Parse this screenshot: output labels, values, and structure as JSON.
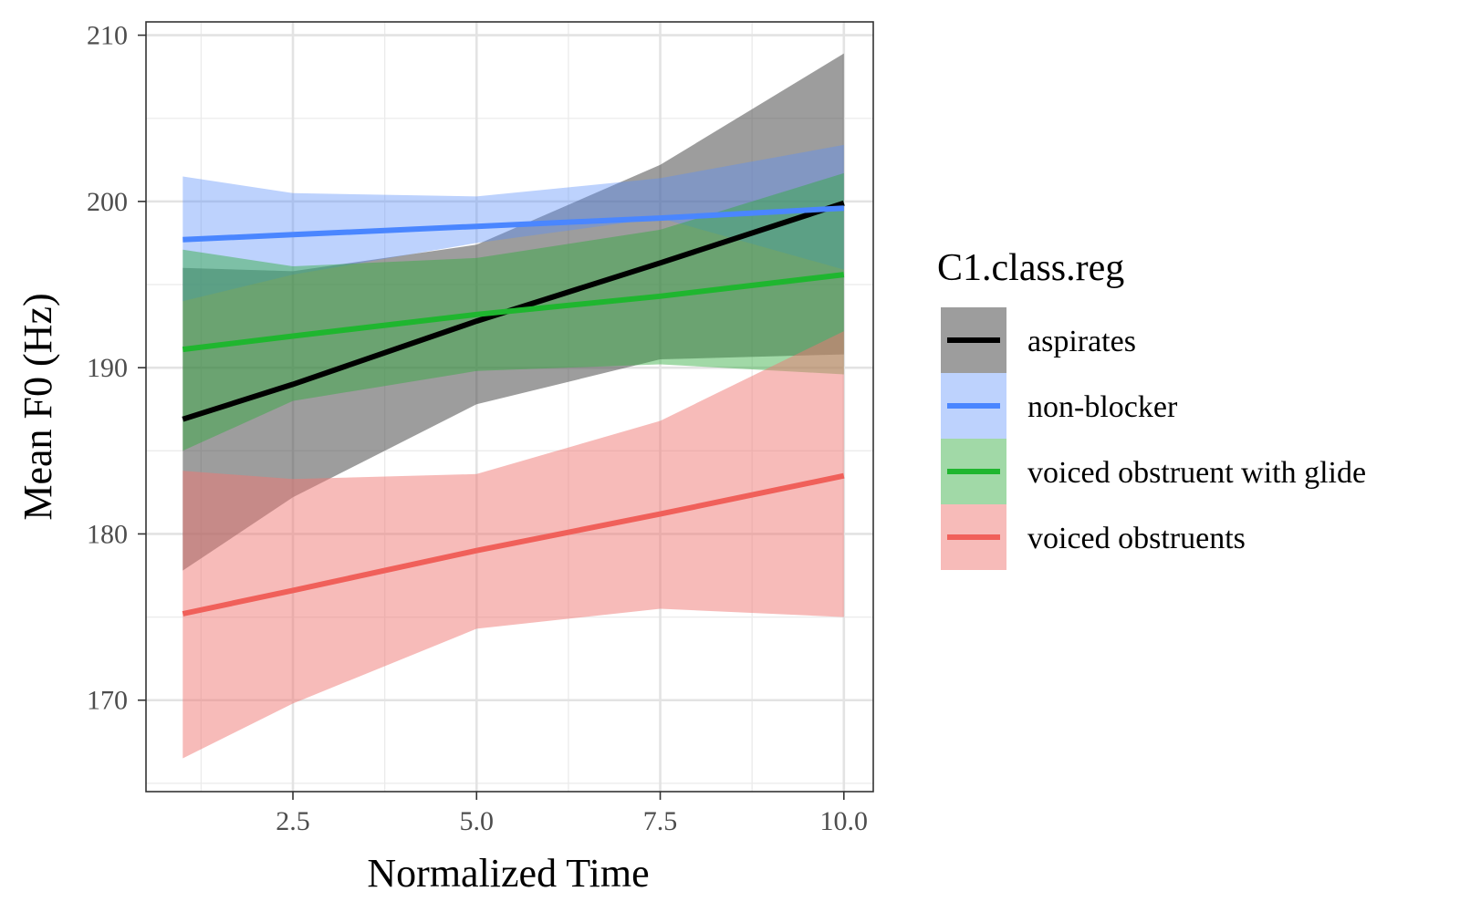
{
  "chart_data": {
    "type": "line",
    "xlabel": "Normalized Time",
    "ylabel": "Mean F0 (Hz)",
    "xlim": [
      0.5,
      10.4
    ],
    "ylim": [
      164.5,
      210.8
    ],
    "x_ticks": [
      2.5,
      5.0,
      7.5,
      10.0
    ],
    "x_tick_labels": [
      "2.5",
      "5.0",
      "7.5",
      "10.0"
    ],
    "x_minor_ticks": [
      1.25,
      3.75,
      6.25,
      8.75
    ],
    "y_ticks": [
      170,
      180,
      190,
      200,
      210
    ],
    "y_tick_labels": [
      "170",
      "180",
      "190",
      "200",
      "210"
    ],
    "y_minor_ticks": [
      165,
      175,
      185,
      195,
      205
    ],
    "grid": true,
    "legend": {
      "title": "C1.class.reg",
      "position": "right"
    },
    "series": [
      {
        "name": "aspirates",
        "color": "#000000",
        "fill_color": "#4d4d4d",
        "fill_opacity": 0.55,
        "x": [
          1,
          2.5,
          5,
          7.5,
          10
        ],
        "y": [
          186.9,
          189.0,
          192.8,
          196.3,
          199.9
        ],
        "lower": [
          177.8,
          182.2,
          187.8,
          190.5,
          190.8
        ],
        "upper": [
          196.0,
          195.8,
          197.4,
          202.2,
          208.9
        ]
      },
      {
        "name": "non-blocker",
        "color": "#4a86ff",
        "fill_color": "#5b8ff9",
        "fill_opacity": 0.4,
        "x": [
          1,
          2.5,
          5,
          7.5,
          10
        ],
        "y": [
          197.7,
          198.0,
          198.5,
          199.0,
          199.6
        ],
        "lower": [
          194.0,
          195.6,
          197.5,
          199.0,
          195.9
        ],
        "upper": [
          201.5,
          200.5,
          200.3,
          201.4,
          203.4
        ]
      },
      {
        "name": "voiced obstruent with glide",
        "color": "#1fb62f",
        "fill_color": "#2eaa3c",
        "fill_opacity": 0.45,
        "x": [
          1,
          2.5,
          5,
          7.5,
          10
        ],
        "y": [
          191.1,
          191.9,
          193.2,
          194.3,
          195.6
        ],
        "lower": [
          185.0,
          188.0,
          189.8,
          190.2,
          189.6
        ],
        "upper": [
          197.1,
          196.1,
          196.6,
          198.3,
          201.7
        ]
      },
      {
        "name": "voiced obstruents",
        "color": "#f0605a",
        "fill_color": "#f07874",
        "fill_opacity": 0.5,
        "x": [
          1,
          2.5,
          5,
          7.5,
          10
        ],
        "y": [
          175.2,
          176.6,
          179.0,
          181.2,
          183.5
        ],
        "lower": [
          166.5,
          169.8,
          174.3,
          175.5,
          175.0
        ],
        "upper": [
          183.8,
          183.3,
          183.6,
          186.8,
          192.2
        ]
      }
    ]
  }
}
